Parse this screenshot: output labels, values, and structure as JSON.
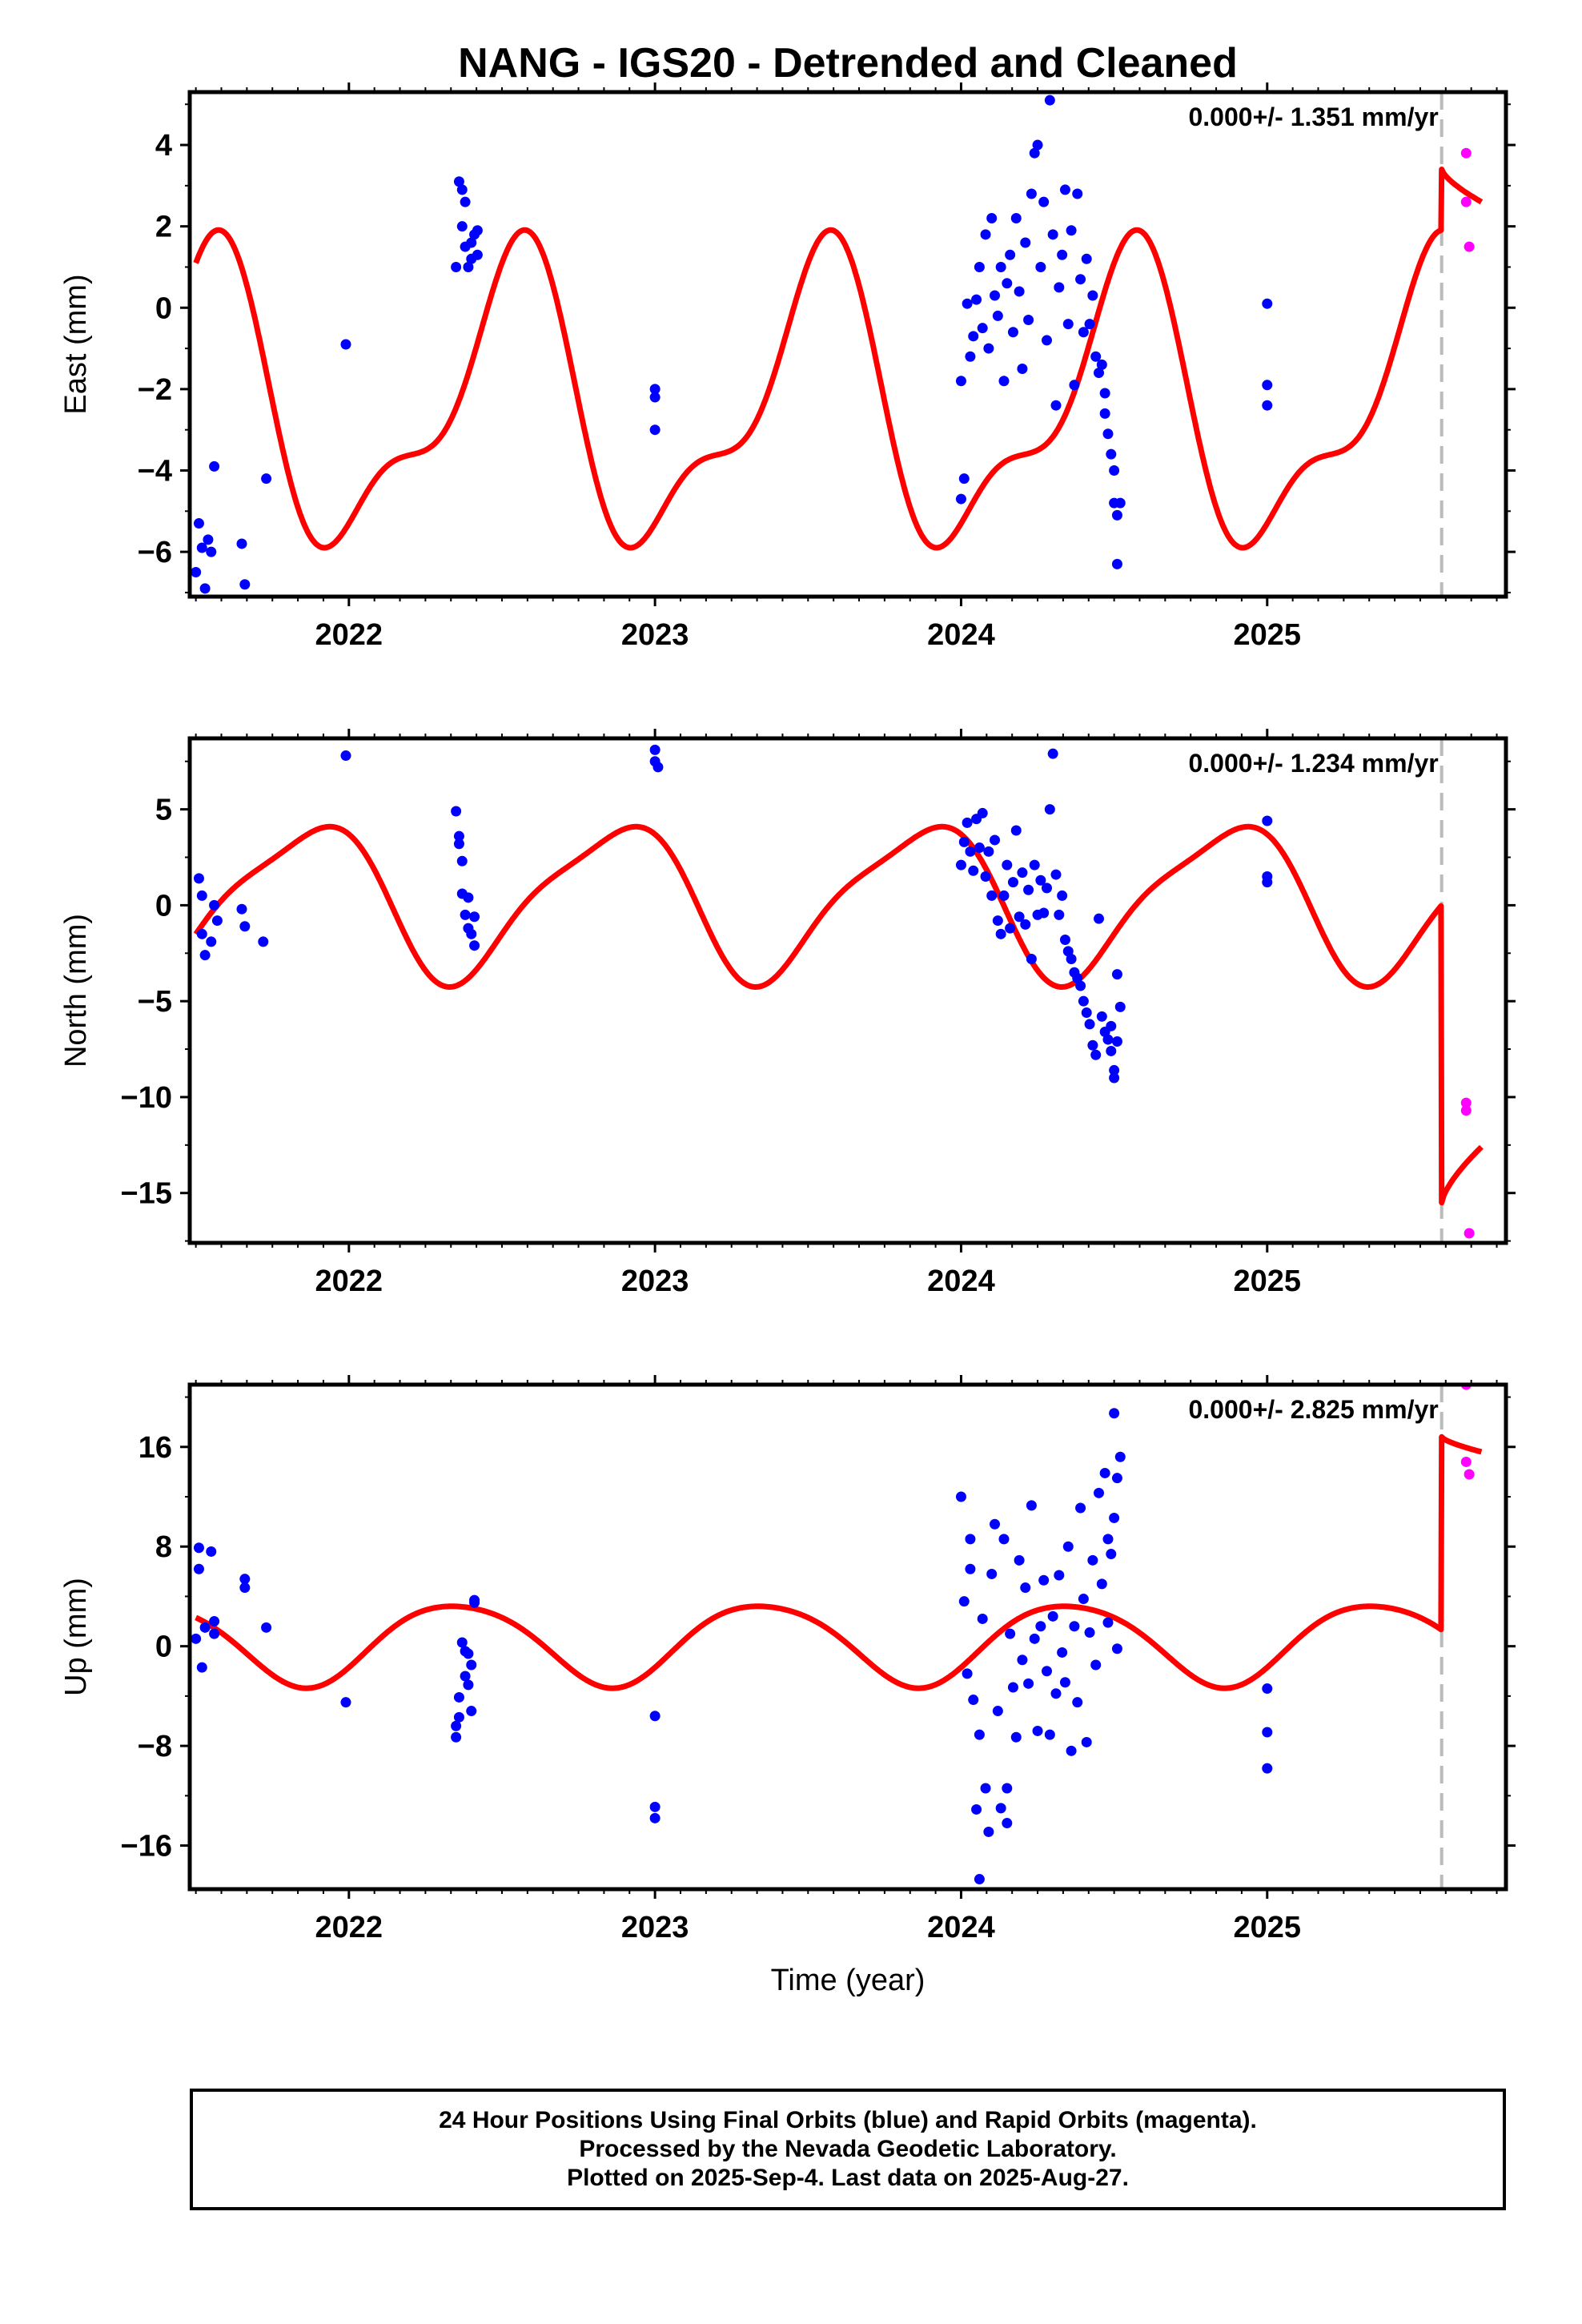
{
  "title": "NANG - IGS20 - Detrended and Cleaned",
  "colors": {
    "final": "#0000ff",
    "rapid": "#ff00ff",
    "model": "#ff0000",
    "offset_line": "#bbbbbb"
  },
  "caption": {
    "line1": "24 Hour Positions Using Final Orbits (blue) and Rapid Orbits (magenta).",
    "line2": "Processed by the Nevada Geodetic Laboratory.",
    "line3": "Plotted on 2025-Sep-4. Last data on 2025-Aug-27."
  },
  "chart_data": [
    {
      "type": "scatter",
      "ylabel": "East (mm)",
      "xlabel": "",
      "rate_label": "0.000+/- 1.351 mm/yr",
      "xlim": [
        2021.48,
        2025.78
      ],
      "ylim": [
        -7.1,
        5.3
      ],
      "yticks": [
        -6,
        -4,
        -2,
        0,
        2,
        4
      ],
      "yticklabels": [
        "−6",
        "−4",
        "−2",
        "0",
        "2",
        "4"
      ],
      "xticks": [
        2022,
        2023,
        2024,
        2025
      ],
      "xticklabels": [
        "2022",
        "2023",
        "2024",
        "2025"
      ],
      "offset_epoch": 2025.57,
      "model": {
        "mean": -2.5,
        "a1": -3.2,
        "b1": -0.6,
        "a2": 0.4,
        "b2": 1.3,
        "post_offset": {
          "start": 3.4,
          "end": 2.6
        }
      },
      "final": [
        [
          2021.5,
          -6.5
        ],
        [
          2021.51,
          -5.3
        ],
        [
          2021.52,
          -5.9
        ],
        [
          2021.53,
          -6.9
        ],
        [
          2021.54,
          -5.7
        ],
        [
          2021.55,
          -6.0
        ],
        [
          2021.56,
          -3.9
        ],
        [
          2021.65,
          -5.8
        ],
        [
          2021.66,
          -6.8
        ],
        [
          2021.73,
          -4.2
        ],
        [
          2021.99,
          -0.9
        ],
        [
          2022.35,
          1.0
        ],
        [
          2022.36,
          3.1
        ],
        [
          2022.37,
          2.9
        ],
        [
          2022.37,
          2.0
        ],
        [
          2022.38,
          2.6
        ],
        [
          2022.38,
          1.5
        ],
        [
          2022.39,
          1.0
        ],
        [
          2022.4,
          1.6
        ],
        [
          2022.4,
          1.2
        ],
        [
          2022.41,
          1.8
        ],
        [
          2022.42,
          1.9
        ],
        [
          2022.42,
          1.3
        ],
        [
          2023.0,
          -2.0
        ],
        [
          2023.0,
          -2.2
        ],
        [
          2023.0,
          -3.0
        ],
        [
          2024.0,
          -4.7
        ],
        [
          2024.01,
          -4.2
        ],
        [
          2024.0,
          -1.8
        ],
        [
          2024.02,
          0.1
        ],
        [
          2024.03,
          -1.2
        ],
        [
          2024.04,
          -0.7
        ],
        [
          2024.05,
          0.2
        ],
        [
          2024.06,
          1.0
        ],
        [
          2024.07,
          -0.5
        ],
        [
          2024.08,
          1.8
        ],
        [
          2024.09,
          -1.0
        ],
        [
          2024.1,
          2.2
        ],
        [
          2024.11,
          0.3
        ],
        [
          2024.12,
          -0.2
        ],
        [
          2024.13,
          1.0
        ],
        [
          2024.14,
          -1.8
        ],
        [
          2024.15,
          0.6
        ],
        [
          2024.16,
          1.3
        ],
        [
          2024.17,
          -0.6
        ],
        [
          2024.18,
          2.2
        ],
        [
          2024.19,
          0.4
        ],
        [
          2024.2,
          -1.5
        ],
        [
          2024.21,
          1.6
        ],
        [
          2024.22,
          -0.3
        ],
        [
          2024.23,
          2.8
        ],
        [
          2024.24,
          3.8
        ],
        [
          2024.25,
          4.0
        ],
        [
          2024.26,
          1.0
        ],
        [
          2024.27,
          2.6
        ],
        [
          2024.28,
          -0.8
        ],
        [
          2024.29,
          5.1
        ],
        [
          2024.3,
          1.8
        ],
        [
          2024.31,
          -2.4
        ],
        [
          2024.32,
          0.5
        ],
        [
          2024.33,
          1.3
        ],
        [
          2024.34,
          2.9
        ],
        [
          2024.35,
          -0.4
        ],
        [
          2024.36,
          1.9
        ],
        [
          2024.37,
          -1.9
        ],
        [
          2024.38,
          2.8
        ],
        [
          2024.39,
          0.7
        ],
        [
          2024.4,
          -0.6
        ],
        [
          2024.41,
          1.2
        ],
        [
          2024.42,
          -0.4
        ],
        [
          2024.43,
          0.3
        ],
        [
          2024.44,
          -1.2
        ],
        [
          2024.45,
          -1.6
        ],
        [
          2024.46,
          -1.4
        ],
        [
          2024.47,
          -2.1
        ],
        [
          2024.47,
          -2.6
        ],
        [
          2024.48,
          -3.1
        ],
        [
          2024.49,
          -3.6
        ],
        [
          2024.5,
          -4.0
        ],
        [
          2024.5,
          -4.8
        ],
        [
          2024.51,
          -5.1
        ],
        [
          2024.51,
          -6.3
        ],
        [
          2024.52,
          -4.8
        ],
        [
          2025.0,
          0.1
        ],
        [
          2025.0,
          -1.9
        ],
        [
          2025.0,
          -2.4
        ]
      ],
      "rapid": [
        [
          2025.65,
          3.8
        ],
        [
          2025.65,
          2.6
        ],
        [
          2025.66,
          1.5
        ]
      ]
    },
    {
      "type": "scatter",
      "ylabel": "North (mm)",
      "xlabel": "",
      "rate_label": "0.000+/- 1.234 mm/yr",
      "xlim": [
        2021.48,
        2025.78
      ],
      "ylim": [
        -17.6,
        8.7
      ],
      "yticks": [
        -15,
        -10,
        -5,
        0,
        5
      ],
      "yticklabels": [
        "−15",
        "−10",
        "−5",
        "0",
        "5"
      ],
      "xticks": [
        2022,
        2023,
        2024,
        2025
      ],
      "xticklabels": [
        "2022",
        "2023",
        "2024",
        "2025"
      ],
      "offset_epoch": 2025.57,
      "model": {
        "mean": 0.3,
        "a1": 2.6,
        "b1": -2.9,
        "a2": 0.8,
        "b2": 0.4,
        "post_offset": {
          "start": -15.5,
          "end": -12.6
        }
      },
      "final": [
        [
          2021.51,
          1.4
        ],
        [
          2021.52,
          0.5
        ],
        [
          2021.52,
          -1.5
        ],
        [
          2021.53,
          -2.6
        ],
        [
          2021.55,
          -1.9
        ],
        [
          2021.56,
          0.0
        ],
        [
          2021.57,
          -0.8
        ],
        [
          2021.65,
          -0.2
        ],
        [
          2021.66,
          -1.1
        ],
        [
          2021.72,
          -1.9
        ],
        [
          2021.99,
          7.8
        ],
        [
          2022.35,
          4.9
        ],
        [
          2022.36,
          3.6
        ],
        [
          2022.36,
          3.2
        ],
        [
          2022.37,
          2.3
        ],
        [
          2022.37,
          0.6
        ],
        [
          2022.38,
          -0.5
        ],
        [
          2022.39,
          -1.2
        ],
        [
          2022.39,
          0.4
        ],
        [
          2022.4,
          -1.5
        ],
        [
          2022.41,
          -2.1
        ],
        [
          2022.41,
          -0.6
        ],
        [
          2023.0,
          8.1
        ],
        [
          2023.0,
          7.5
        ],
        [
          2023.01,
          7.2
        ],
        [
          2024.0,
          2.1
        ],
        [
          2024.01,
          3.3
        ],
        [
          2024.02,
          4.3
        ],
        [
          2024.03,
          2.8
        ],
        [
          2024.04,
          1.8
        ],
        [
          2024.05,
          4.5
        ],
        [
          2024.06,
          3.0
        ],
        [
          2024.07,
          4.8
        ],
        [
          2024.08,
          1.5
        ],
        [
          2024.09,
          2.8
        ],
        [
          2024.1,
          0.5
        ],
        [
          2024.11,
          3.4
        ],
        [
          2024.12,
          -0.8
        ],
        [
          2024.13,
          -1.5
        ],
        [
          2024.14,
          0.5
        ],
        [
          2024.15,
          2.1
        ],
        [
          2024.16,
          -1.2
        ],
        [
          2024.17,
          1.2
        ],
        [
          2024.18,
          3.9
        ],
        [
          2024.19,
          -0.6
        ],
        [
          2024.2,
          1.7
        ],
        [
          2024.21,
          -1.0
        ],
        [
          2024.22,
          0.8
        ],
        [
          2024.23,
          -2.8
        ],
        [
          2024.24,
          2.1
        ],
        [
          2024.25,
          -0.5
        ],
        [
          2024.26,
          1.3
        ],
        [
          2024.27,
          -0.4
        ],
        [
          2024.28,
          0.9
        ],
        [
          2024.29,
          5.0
        ],
        [
          2024.3,
          7.9
        ],
        [
          2024.31,
          1.6
        ],
        [
          2024.32,
          -0.5
        ],
        [
          2024.33,
          0.5
        ],
        [
          2024.34,
          -1.8
        ],
        [
          2024.35,
          -2.4
        ],
        [
          2024.36,
          -2.8
        ],
        [
          2024.37,
          -3.5
        ],
        [
          2024.38,
          -3.8
        ],
        [
          2024.39,
          -4.2
        ],
        [
          2024.4,
          -5.0
        ],
        [
          2024.41,
          -5.6
        ],
        [
          2024.42,
          -6.2
        ],
        [
          2024.43,
          -7.3
        ],
        [
          2024.44,
          -7.8
        ],
        [
          2024.45,
          -0.7
        ],
        [
          2024.46,
          -5.8
        ],
        [
          2024.47,
          -6.6
        ],
        [
          2024.48,
          -7.0
        ],
        [
          2024.49,
          -7.6
        ],
        [
          2024.49,
          -6.3
        ],
        [
          2024.5,
          -8.6
        ],
        [
          2024.5,
          -9.0
        ],
        [
          2024.51,
          -7.1
        ],
        [
          2024.51,
          -3.6
        ],
        [
          2024.52,
          -5.3
        ],
        [
          2025.0,
          4.4
        ],
        [
          2025.0,
          1.5
        ],
        [
          2025.0,
          1.2
        ]
      ],
      "rapid": [
        [
          2025.65,
          -10.3
        ],
        [
          2025.65,
          -10.7
        ],
        [
          2025.66,
          -17.1
        ]
      ]
    },
    {
      "type": "scatter",
      "ylabel": "Up (mm)",
      "xlabel": "Time (year)",
      "rate_label": "0.000+/- 2.825 mm/yr",
      "xlim": [
        2021.48,
        2025.78
      ],
      "ylim": [
        -19.5,
        21.0
      ],
      "yticks": [
        -16,
        -8,
        0,
        8,
        16
      ],
      "yticklabels": [
        "−16",
        "−8",
        "0",
        "8",
        "16"
      ],
      "xticks": [
        2022,
        2023,
        2024,
        2025
      ],
      "xticklabels": [
        "2022",
        "2023",
        "2024",
        "2025"
      ],
      "offset_epoch": 2025.57,
      "model": {
        "mean": 0.3,
        "a1": -2.0,
        "b1": 2.6,
        "a2": 0.0,
        "b2": 0.4,
        "post_offset": {
          "start": 16.8,
          "end": 15.6
        }
      },
      "final": [
        [
          2021.5,
          0.6
        ],
        [
          2021.51,
          7.9
        ],
        [
          2021.51,
          6.2
        ],
        [
          2021.52,
          -1.7
        ],
        [
          2021.53,
          1.5
        ],
        [
          2021.55,
          7.6
        ],
        [
          2021.56,
          2.0
        ],
        [
          2021.56,
          1.0
        ],
        [
          2021.66,
          5.4
        ],
        [
          2021.66,
          4.7
        ],
        [
          2021.73,
          1.5
        ],
        [
          2021.99,
          -4.5
        ],
        [
          2022.35,
          -6.4
        ],
        [
          2022.35,
          -7.3
        ],
        [
          2022.36,
          -5.7
        ],
        [
          2022.36,
          -4.1
        ],
        [
          2022.37,
          0.3
        ],
        [
          2022.38,
          -0.4
        ],
        [
          2022.38,
          -2.4
        ],
        [
          2022.39,
          -3.1
        ],
        [
          2022.39,
          -0.6
        ],
        [
          2022.4,
          -1.5
        ],
        [
          2022.4,
          -5.2
        ],
        [
          2022.41,
          3.7
        ],
        [
          2022.41,
          3.5
        ],
        [
          2023.0,
          -5.6
        ],
        [
          2023.0,
          -12.9
        ],
        [
          2023.0,
          -13.8
        ],
        [
          2024.0,
          12.0
        ],
        [
          2024.01,
          3.6
        ],
        [
          2024.02,
          -2.2
        ],
        [
          2024.03,
          8.6
        ],
        [
          2024.03,
          6.2
        ],
        [
          2024.04,
          -4.3
        ],
        [
          2024.05,
          -13.1
        ],
        [
          2024.06,
          -7.1
        ],
        [
          2024.06,
          -18.7
        ],
        [
          2024.07,
          2.2
        ],
        [
          2024.08,
          -11.4
        ],
        [
          2024.09,
          -14.9
        ],
        [
          2024.1,
          5.8
        ],
        [
          2024.11,
          9.8
        ],
        [
          2024.12,
          -5.2
        ],
        [
          2024.13,
          -13.0
        ],
        [
          2024.14,
          8.6
        ],
        [
          2024.15,
          -11.4
        ],
        [
          2024.15,
          -14.2
        ],
        [
          2024.16,
          1.0
        ],
        [
          2024.17,
          -3.3
        ],
        [
          2024.18,
          -7.3
        ],
        [
          2024.19,
          6.9
        ],
        [
          2024.2,
          -1.1
        ],
        [
          2024.21,
          4.7
        ],
        [
          2024.22,
          -3.0
        ],
        [
          2024.23,
          11.3
        ],
        [
          2024.24,
          0.6
        ],
        [
          2024.25,
          -6.8
        ],
        [
          2024.26,
          1.6
        ],
        [
          2024.27,
          5.3
        ],
        [
          2024.28,
          -2.0
        ],
        [
          2024.29,
          -7.1
        ],
        [
          2024.3,
          2.4
        ],
        [
          2024.31,
          -3.8
        ],
        [
          2024.32,
          5.7
        ],
        [
          2024.33,
          -0.5
        ],
        [
          2024.34,
          -2.9
        ],
        [
          2024.35,
          8.0
        ],
        [
          2024.36,
          -8.4
        ],
        [
          2024.37,
          1.6
        ],
        [
          2024.38,
          -4.5
        ],
        [
          2024.39,
          11.1
        ],
        [
          2024.4,
          3.8
        ],
        [
          2024.41,
          -7.7
        ],
        [
          2024.42,
          1.1
        ],
        [
          2024.43,
          6.9
        ],
        [
          2024.44,
          -1.5
        ],
        [
          2024.45,
          12.3
        ],
        [
          2024.46,
          5.0
        ],
        [
          2024.47,
          13.9
        ],
        [
          2024.48,
          8.6
        ],
        [
          2024.48,
          1.9
        ],
        [
          2024.49,
          7.4
        ],
        [
          2024.5,
          18.7
        ],
        [
          2024.5,
          10.3
        ],
        [
          2024.51,
          -0.2
        ],
        [
          2024.51,
          13.5
        ],
        [
          2024.52,
          15.2
        ],
        [
          2025.0,
          -3.4
        ],
        [
          2025.0,
          -6.9
        ],
        [
          2025.0,
          -9.8
        ]
      ],
      "rapid": [
        [
          2025.65,
          21.0
        ],
        [
          2025.65,
          14.8
        ],
        [
          2025.66,
          13.8
        ]
      ]
    }
  ]
}
